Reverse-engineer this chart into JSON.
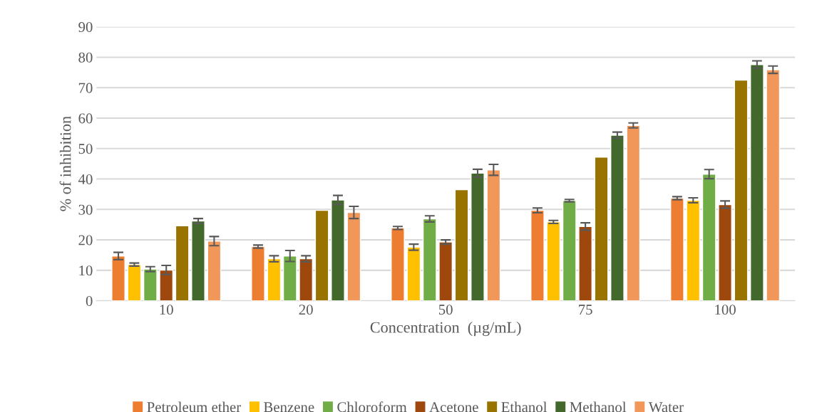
{
  "chart_data": {
    "type": "bar",
    "xlabel": "Concentration  (µg/mL)",
    "ylabel": "% of inhibition",
    "categories": [
      "10",
      "20",
      "50",
      "75",
      "100"
    ],
    "series": [
      {
        "name": "Petroleum ether",
        "color": "#ed7d31",
        "values": [
          14.7,
          17.8,
          23.9,
          29.7,
          33.7
        ],
        "errors": [
          1.2,
          0.5,
          0.5,
          0.8,
          0.5
        ]
      },
      {
        "name": "Benzene",
        "color": "#ffc000",
        "values": [
          11.9,
          13.8,
          17.6,
          25.9,
          33.0
        ],
        "errors": [
          0.5,
          1.0,
          1.0,
          0.5,
          0.8
        ]
      },
      {
        "name": "Chloroform",
        "color": "#70ad47",
        "values": [
          10.4,
          14.7,
          26.9,
          32.9,
          41.6
        ],
        "errors": [
          0.8,
          1.8,
          1.0,
          0.4,
          1.5
        ]
      },
      {
        "name": "Acetone",
        "color": "#9e480e",
        "values": [
          10.1,
          13.8,
          19.3,
          24.4,
          31.6
        ],
        "errors": [
          1.5,
          1.0,
          0.7,
          1.2,
          1.2
        ]
      },
      {
        "name": "Ethanol",
        "color": "#997300",
        "values": [
          24.6,
          29.7,
          36.5,
          47.2,
          72.5
        ]
      },
      {
        "name": "Methanol",
        "color": "#43682b",
        "values": [
          26.2,
          33.1,
          41.9,
          54.4,
          77.6
        ],
        "errors": [
          0.8,
          1.5,
          1.3,
          1.0,
          1.2
        ]
      },
      {
        "name": "Water",
        "color": "#f1975a",
        "values": [
          19.6,
          29.0,
          43.0,
          57.6,
          75.9
        ],
        "errors": [
          1.5,
          2.0,
          1.8,
          0.8,
          1.2
        ]
      }
    ],
    "ylim": [
      0,
      90
    ],
    "yticks": [
      0,
      10,
      20,
      30,
      40,
      50,
      60,
      70,
      80,
      90
    ],
    "grid": "y",
    "legend": "bottom"
  }
}
